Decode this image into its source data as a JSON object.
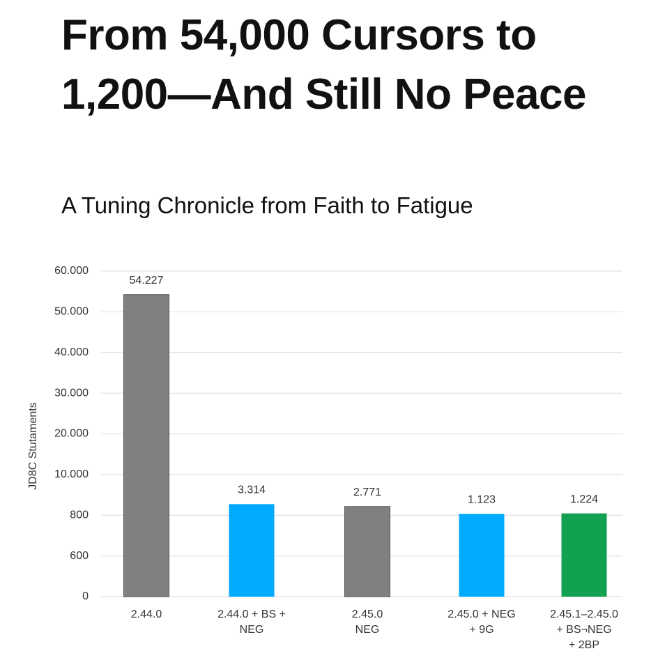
{
  "chart_data": {
    "type": "bar",
    "title": "From 54,000 Cursors to 1,200—And Still No Peace",
    "subtitle": "A Tuning Chronicle from Faith to Fatigue",
    "y_label": "JD8C Stutaments",
    "categories": [
      "2.44.0",
      "2.44.0 + BS +\nNEG",
      "2.45.0\nNEG",
      "2.45.0 + NEG\n+ 9G",
      "2.45.1–2.45.0\n+ BS¬NEG\n+ 2BP"
    ],
    "values": [
      54227,
      3314,
      2771,
      1123,
      1224
    ],
    "value_labels": [
      "54.227",
      "3.314",
      "2.771",
      "1.123",
      "1.224"
    ],
    "colors": [
      "#808080",
      "#00aaff",
      "#808080",
      "#00aaff",
      "#12a150"
    ],
    "ylim": [
      0,
      60000
    ],
    "yticks": [
      0,
      600,
      800,
      {
        "value": 10000,
        "label": "10.000"
      },
      {
        "value": 20000,
        "label": "20.000"
      },
      {
        "value": 30000,
        "label": "30.000"
      },
      {
        "value": 40000,
        "label": "40.000"
      },
      {
        "value": 50000,
        "label": "50.000"
      },
      {
        "value": 60000,
        "label": "60.000"
      }
    ],
    "grid": true
  }
}
